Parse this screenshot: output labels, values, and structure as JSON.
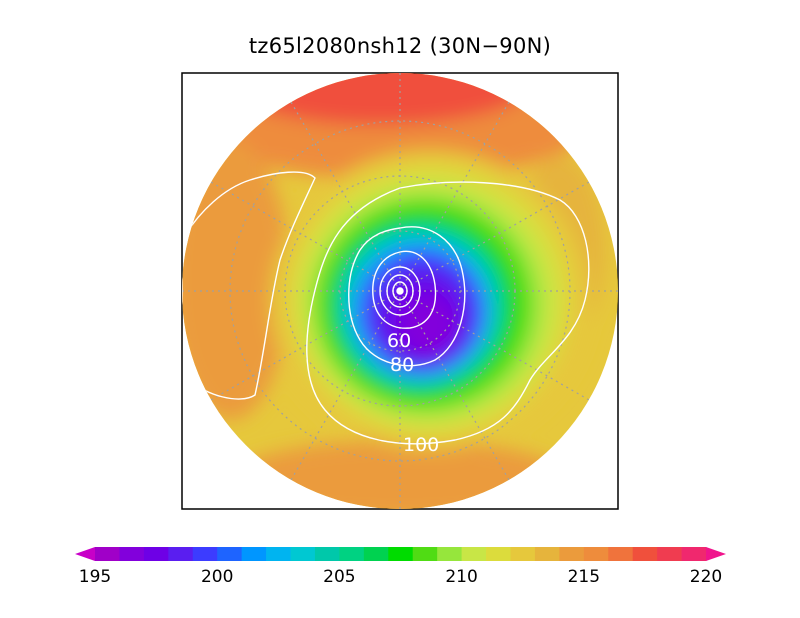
{
  "title": "tz65l2080nsh12 (30N−90N)",
  "map": {
    "projection": "north-polar-stereographic",
    "lat_range": [
      "30N",
      "90N"
    ],
    "contour_color": "#ffffff",
    "graticule_color": "#a0a0a0",
    "contour_labels": [
      "60",
      "80",
      "100"
    ]
  },
  "colorbar": {
    "min": 195,
    "max": 220,
    "step": 1,
    "extend": "both",
    "ticks": [
      195,
      200,
      205,
      210,
      215,
      220
    ],
    "tick_labels": [
      "195",
      "200",
      "205",
      "210",
      "215",
      "220"
    ],
    "colors": [
      "#a000c8",
      "#8200dc",
      "#6e00e6",
      "#5a1ef0",
      "#3c3cff",
      "#1e64ff",
      "#0096ff",
      "#00b4f0",
      "#00c8d2",
      "#00c8aa",
      "#00d282",
      "#00d250",
      "#00dc00",
      "#50dc14",
      "#96e63c",
      "#c8e646",
      "#dcdc3c",
      "#e6c83c",
      "#e6b43c",
      "#eb9b3c",
      "#ee8c3c",
      "#f0733c",
      "#f0503c",
      "#f03c50",
      "#f0286e"
    ],
    "under_color": "#c800c8",
    "over_color": "#f0148c"
  }
}
